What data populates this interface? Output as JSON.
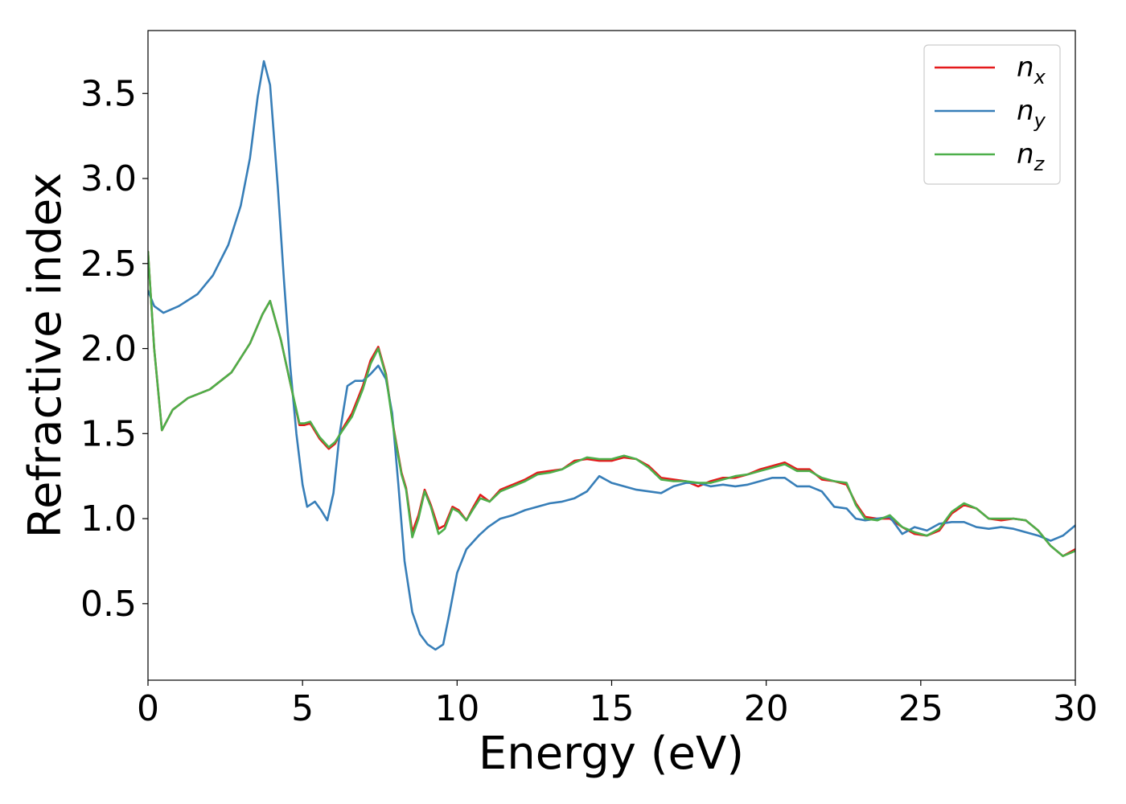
{
  "chart_data": {
    "type": "line",
    "title": "",
    "xlabel": "Energy (eV)",
    "ylabel": "Refractive index",
    "xlim": [
      0,
      30
    ],
    "ylim": [
      0.05,
      3.87
    ],
    "xticks": [
      0,
      5,
      10,
      15,
      20,
      25,
      30
    ],
    "yticks": [
      0.5,
      1.0,
      1.5,
      2.0,
      2.5,
      3.0,
      3.5
    ],
    "xtick_labels": [
      "0",
      "5",
      "10",
      "15",
      "20",
      "25",
      "30"
    ],
    "ytick_labels": [
      "0.5",
      "1.0",
      "1.5",
      "2.0",
      "2.5",
      "3.0",
      "3.5"
    ],
    "grid": false,
    "legend": {
      "position": "top-right"
    },
    "series": [
      {
        "name": "n",
        "subscript": "x",
        "color": "#e41a1c",
        "points": [
          [
            0,
            2.57
          ],
          [
            0.2,
            2.0
          ],
          [
            0.45,
            1.52
          ],
          [
            0.8,
            1.64
          ],
          [
            1.3,
            1.71
          ],
          [
            2.0,
            1.76
          ],
          [
            2.7,
            1.86
          ],
          [
            3.3,
            2.03
          ],
          [
            3.7,
            2.2
          ],
          [
            3.95,
            2.28
          ],
          [
            4.3,
            2.05
          ],
          [
            4.6,
            1.8
          ],
          [
            4.9,
            1.55
          ],
          [
            5.05,
            1.55
          ],
          [
            5.25,
            1.56
          ],
          [
            5.55,
            1.47
          ],
          [
            5.85,
            1.41
          ],
          [
            6.05,
            1.44
          ],
          [
            6.3,
            1.53
          ],
          [
            6.6,
            1.62
          ],
          [
            6.95,
            1.78
          ],
          [
            7.2,
            1.93
          ],
          [
            7.45,
            2.01
          ],
          [
            7.7,
            1.85
          ],
          [
            7.95,
            1.53
          ],
          [
            8.2,
            1.27
          ],
          [
            8.35,
            1.18
          ],
          [
            8.55,
            0.92
          ],
          [
            8.75,
            1.02
          ],
          [
            8.95,
            1.17
          ],
          [
            9.15,
            1.08
          ],
          [
            9.4,
            0.94
          ],
          [
            9.6,
            0.96
          ],
          [
            9.85,
            1.07
          ],
          [
            10.05,
            1.05
          ],
          [
            10.3,
            0.99
          ],
          [
            10.5,
            1.06
          ],
          [
            10.75,
            1.14
          ],
          [
            11.05,
            1.1
          ],
          [
            11.4,
            1.17
          ],
          [
            11.8,
            1.2
          ],
          [
            12.2,
            1.23
          ],
          [
            12.6,
            1.27
          ],
          [
            13.0,
            1.28
          ],
          [
            13.4,
            1.29
          ],
          [
            13.8,
            1.34
          ],
          [
            14.2,
            1.35
          ],
          [
            14.6,
            1.34
          ],
          [
            15.0,
            1.34
          ],
          [
            15.4,
            1.36
          ],
          [
            15.8,
            1.35
          ],
          [
            16.2,
            1.31
          ],
          [
            16.6,
            1.24
          ],
          [
            17.0,
            1.23
          ],
          [
            17.4,
            1.22
          ],
          [
            17.8,
            1.19
          ],
          [
            18.2,
            1.22
          ],
          [
            18.6,
            1.24
          ],
          [
            19.0,
            1.24
          ],
          [
            19.4,
            1.26
          ],
          [
            19.8,
            1.29
          ],
          [
            20.2,
            1.31
          ],
          [
            20.6,
            1.33
          ],
          [
            21.0,
            1.29
          ],
          [
            21.4,
            1.29
          ],
          [
            21.8,
            1.23
          ],
          [
            22.2,
            1.22
          ],
          [
            22.6,
            1.2
          ],
          [
            22.9,
            1.09
          ],
          [
            23.2,
            1.01
          ],
          [
            23.6,
            1.0
          ],
          [
            24.0,
            1.0
          ],
          [
            24.4,
            0.95
          ],
          [
            24.8,
            0.91
          ],
          [
            25.2,
            0.9
          ],
          [
            25.6,
            0.93
          ],
          [
            26.0,
            1.03
          ],
          [
            26.4,
            1.08
          ],
          [
            26.8,
            1.06
          ],
          [
            27.2,
            1.0
          ],
          [
            27.6,
            0.99
          ],
          [
            28.0,
            1.0
          ],
          [
            28.4,
            0.99
          ],
          [
            28.8,
            0.93
          ],
          [
            29.2,
            0.84
          ],
          [
            29.6,
            0.78
          ],
          [
            30.0,
            0.82
          ]
        ]
      },
      {
        "name": "n",
        "subscript": "y",
        "color": "#377eb8",
        "points": [
          [
            0,
            2.34
          ],
          [
            0.2,
            2.25
          ],
          [
            0.5,
            2.21
          ],
          [
            1.0,
            2.25
          ],
          [
            1.6,
            2.32
          ],
          [
            2.1,
            2.43
          ],
          [
            2.6,
            2.61
          ],
          [
            3.0,
            2.84
          ],
          [
            3.3,
            3.12
          ],
          [
            3.55,
            3.48
          ],
          [
            3.75,
            3.69
          ],
          [
            3.95,
            3.55
          ],
          [
            4.2,
            2.95
          ],
          [
            4.4,
            2.4
          ],
          [
            4.6,
            1.9
          ],
          [
            4.8,
            1.5
          ],
          [
            5.0,
            1.2
          ],
          [
            5.15,
            1.07
          ],
          [
            5.4,
            1.1
          ],
          [
            5.6,
            1.05
          ],
          [
            5.8,
            0.99
          ],
          [
            6.0,
            1.15
          ],
          [
            6.2,
            1.5
          ],
          [
            6.45,
            1.78
          ],
          [
            6.7,
            1.81
          ],
          [
            6.95,
            1.81
          ],
          [
            7.2,
            1.85
          ],
          [
            7.45,
            1.9
          ],
          [
            7.7,
            1.82
          ],
          [
            7.9,
            1.62
          ],
          [
            8.1,
            1.2
          ],
          [
            8.3,
            0.75
          ],
          [
            8.55,
            0.45
          ],
          [
            8.8,
            0.32
          ],
          [
            9.05,
            0.26
          ],
          [
            9.3,
            0.23
          ],
          [
            9.55,
            0.26
          ],
          [
            9.75,
            0.44
          ],
          [
            10.0,
            0.68
          ],
          [
            10.3,
            0.82
          ],
          [
            10.7,
            0.9
          ],
          [
            11.0,
            0.95
          ],
          [
            11.4,
            1.0
          ],
          [
            11.8,
            1.02
          ],
          [
            12.2,
            1.05
          ],
          [
            12.6,
            1.07
          ],
          [
            13.0,
            1.09
          ],
          [
            13.4,
            1.1
          ],
          [
            13.8,
            1.12
          ],
          [
            14.2,
            1.16
          ],
          [
            14.6,
            1.25
          ],
          [
            15.0,
            1.21
          ],
          [
            15.4,
            1.19
          ],
          [
            15.8,
            1.17
          ],
          [
            16.2,
            1.16
          ],
          [
            16.6,
            1.15
          ],
          [
            17.0,
            1.19
          ],
          [
            17.4,
            1.21
          ],
          [
            17.8,
            1.21
          ],
          [
            18.2,
            1.19
          ],
          [
            18.6,
            1.2
          ],
          [
            19.0,
            1.19
          ],
          [
            19.4,
            1.2
          ],
          [
            19.8,
            1.22
          ],
          [
            20.2,
            1.24
          ],
          [
            20.6,
            1.24
          ],
          [
            21.0,
            1.19
          ],
          [
            21.4,
            1.19
          ],
          [
            21.8,
            1.16
          ],
          [
            22.2,
            1.07
          ],
          [
            22.6,
            1.06
          ],
          [
            22.9,
            1.0
          ],
          [
            23.2,
            0.99
          ],
          [
            23.6,
            1.0
          ],
          [
            24.0,
            1.01
          ],
          [
            24.4,
            0.91
          ],
          [
            24.8,
            0.95
          ],
          [
            25.2,
            0.93
          ],
          [
            25.6,
            0.97
          ],
          [
            26.0,
            0.98
          ],
          [
            26.4,
            0.98
          ],
          [
            26.8,
            0.95
          ],
          [
            27.2,
            0.94
          ],
          [
            27.6,
            0.95
          ],
          [
            28.0,
            0.94
          ],
          [
            28.4,
            0.92
          ],
          [
            28.8,
            0.9
          ],
          [
            29.2,
            0.87
          ],
          [
            29.6,
            0.9
          ],
          [
            30.0,
            0.96
          ]
        ]
      },
      {
        "name": "n",
        "subscript": "z",
        "color": "#4daf4a",
        "points": [
          [
            0,
            2.57
          ],
          [
            0.2,
            2.0
          ],
          [
            0.45,
            1.52
          ],
          [
            0.8,
            1.64
          ],
          [
            1.3,
            1.71
          ],
          [
            2.0,
            1.76
          ],
          [
            2.7,
            1.86
          ],
          [
            3.3,
            2.03
          ],
          [
            3.7,
            2.2
          ],
          [
            3.95,
            2.28
          ],
          [
            4.3,
            2.05
          ],
          [
            4.6,
            1.8
          ],
          [
            4.9,
            1.56
          ],
          [
            5.05,
            1.56
          ],
          [
            5.25,
            1.57
          ],
          [
            5.55,
            1.48
          ],
          [
            5.85,
            1.42
          ],
          [
            6.05,
            1.45
          ],
          [
            6.3,
            1.52
          ],
          [
            6.6,
            1.6
          ],
          [
            6.95,
            1.76
          ],
          [
            7.2,
            1.91
          ],
          [
            7.45,
            2.0
          ],
          [
            7.7,
            1.84
          ],
          [
            7.95,
            1.52
          ],
          [
            8.2,
            1.26
          ],
          [
            8.35,
            1.17
          ],
          [
            8.55,
            0.89
          ],
          [
            8.75,
            1.0
          ],
          [
            8.95,
            1.16
          ],
          [
            9.15,
            1.07
          ],
          [
            9.4,
            0.91
          ],
          [
            9.6,
            0.94
          ],
          [
            9.85,
            1.06
          ],
          [
            10.05,
            1.04
          ],
          [
            10.3,
            0.99
          ],
          [
            10.5,
            1.05
          ],
          [
            10.75,
            1.12
          ],
          [
            11.05,
            1.1
          ],
          [
            11.4,
            1.16
          ],
          [
            11.8,
            1.19
          ],
          [
            12.2,
            1.22
          ],
          [
            12.6,
            1.26
          ],
          [
            13.0,
            1.27
          ],
          [
            13.4,
            1.29
          ],
          [
            13.8,
            1.33
          ],
          [
            14.2,
            1.36
          ],
          [
            14.6,
            1.35
          ],
          [
            15.0,
            1.35
          ],
          [
            15.4,
            1.37
          ],
          [
            15.8,
            1.35
          ],
          [
            16.2,
            1.3
          ],
          [
            16.6,
            1.23
          ],
          [
            17.0,
            1.22
          ],
          [
            17.4,
            1.22
          ],
          [
            17.8,
            1.21
          ],
          [
            18.2,
            1.21
          ],
          [
            18.6,
            1.23
          ],
          [
            19.0,
            1.25
          ],
          [
            19.4,
            1.26
          ],
          [
            19.8,
            1.28
          ],
          [
            20.2,
            1.3
          ],
          [
            20.6,
            1.32
          ],
          [
            21.0,
            1.28
          ],
          [
            21.4,
            1.28
          ],
          [
            21.8,
            1.24
          ],
          [
            22.2,
            1.22
          ],
          [
            22.6,
            1.21
          ],
          [
            22.9,
            1.08
          ],
          [
            23.2,
            1.0
          ],
          [
            23.6,
            0.99
          ],
          [
            24.0,
            1.02
          ],
          [
            24.4,
            0.95
          ],
          [
            24.8,
            0.92
          ],
          [
            25.2,
            0.9
          ],
          [
            25.6,
            0.94
          ],
          [
            26.0,
            1.04
          ],
          [
            26.4,
            1.09
          ],
          [
            26.8,
            1.06
          ],
          [
            27.2,
            1.0
          ],
          [
            27.6,
            1.0
          ],
          [
            28.0,
            1.0
          ],
          [
            28.4,
            0.99
          ],
          [
            28.8,
            0.93
          ],
          [
            29.2,
            0.84
          ],
          [
            29.6,
            0.78
          ],
          [
            30.0,
            0.81
          ]
        ]
      }
    ]
  }
}
